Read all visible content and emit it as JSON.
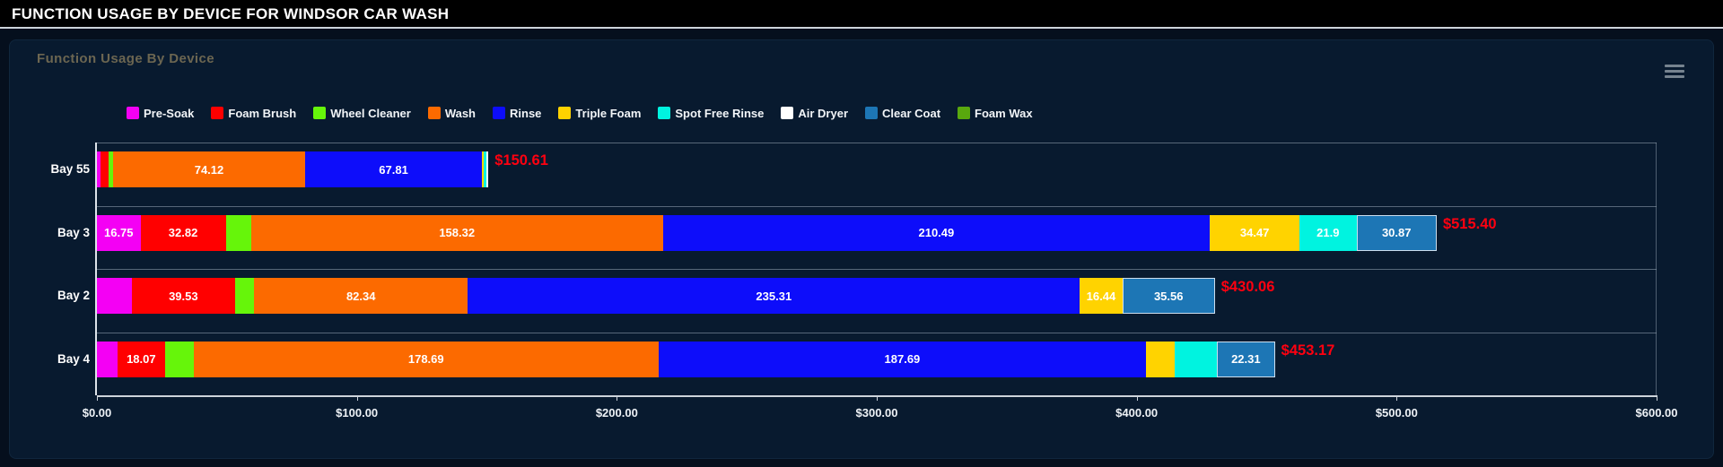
{
  "header": {
    "title": "FUNCTION USAGE BY DEVICE FOR WINDSOR CAR WASH"
  },
  "card": {
    "title": "Function Usage By Device",
    "menu_icon": "hamburger-icon"
  },
  "chart_data": {
    "type": "bar",
    "orientation": "horizontal",
    "stacked": true,
    "title": "Function Usage By Device",
    "xlabel": "",
    "ylabel": "",
    "xlim": [
      0,
      600
    ],
    "grid": "category-band-separators",
    "legend_position": "top",
    "x_ticks": [
      "$0.00",
      "$100.00",
      "$200.00",
      "$300.00",
      "$400.00",
      "$500.00",
      "$600.00"
    ],
    "legend": [
      {
        "name": "Pre-Soak",
        "color": "#f400f4"
      },
      {
        "name": "Foam Brush",
        "color": "#ff0000"
      },
      {
        "name": "Wheel Cleaner",
        "color": "#66f50a"
      },
      {
        "name": "Wash",
        "color": "#fc6a00"
      },
      {
        "name": "Rinse",
        "color": "#0d0dfa"
      },
      {
        "name": "Triple Foam",
        "color": "#ffd300"
      },
      {
        "name": "Spot Free Rinse",
        "color": "#00f3e0"
      },
      {
        "name": "Air Dryer",
        "color": "#ffffff"
      },
      {
        "name": "Clear Coat",
        "color": "#1d76b5"
      },
      {
        "name": "Foam Wax",
        "color": "#59a80e"
      }
    ],
    "rows": [
      {
        "label": "Bay 55",
        "total_value": 150.61,
        "total_label": "$150.61",
        "segments": [
          {
            "series": "Pre-Soak",
            "value": 1.5,
            "label": ""
          },
          {
            "series": "Foam Brush",
            "value": 3.1,
            "label": ""
          },
          {
            "series": "Wheel Cleaner",
            "value": 1.5,
            "label": ""
          },
          {
            "series": "Wash",
            "value": 74.12,
            "label": "74.12"
          },
          {
            "series": "Rinse",
            "value": 67.81,
            "label": "67.81"
          },
          {
            "series": "Triple Foam",
            "value": 0.9,
            "label": ""
          },
          {
            "series": "Spot Free Rinse",
            "value": 0.9,
            "label": ""
          },
          {
            "series": "Air Dryer",
            "value": 0.78,
            "label": ""
          }
        ]
      },
      {
        "label": "Bay 3",
        "total_value": 515.4,
        "total_label": "$515.40",
        "segments": [
          {
            "series": "Pre-Soak",
            "value": 16.75,
            "label": "16.75"
          },
          {
            "series": "Foam Brush",
            "value": 32.82,
            "label": "32.82"
          },
          {
            "series": "Wheel Cleaner",
            "value": 9.78,
            "label": ""
          },
          {
            "series": "Wash",
            "value": 158.32,
            "label": "158.32"
          },
          {
            "series": "Rinse",
            "value": 210.49,
            "label": "210.49"
          },
          {
            "series": "Triple Foam",
            "value": 34.47,
            "label": "34.47"
          },
          {
            "series": "Spot Free Rinse",
            "value": 21.9,
            "label": "21.9"
          },
          {
            "series": "Clear Coat",
            "value": 30.87,
            "label": "30.87"
          }
        ]
      },
      {
        "label": "Bay 2",
        "total_value": 430.06,
        "total_label": "$430.06",
        "segments": [
          {
            "series": "Pre-Soak",
            "value": 13.5,
            "label": ""
          },
          {
            "series": "Foam Brush",
            "value": 39.53,
            "label": "39.53"
          },
          {
            "series": "Wheel Cleaner",
            "value": 7.38,
            "label": ""
          },
          {
            "series": "Wash",
            "value": 82.34,
            "label": "82.34"
          },
          {
            "series": "Rinse",
            "value": 235.31,
            "label": "235.31"
          },
          {
            "series": "Triple Foam",
            "value": 16.44,
            "label": "16.44"
          },
          {
            "series": "Clear Coat",
            "value": 35.56,
            "label": "35.56"
          }
        ]
      },
      {
        "label": "Bay 4",
        "total_value": 453.17,
        "total_label": "$453.17",
        "segments": [
          {
            "series": "Pre-Soak",
            "value": 8.0,
            "label": ""
          },
          {
            "series": "Foam Brush",
            "value": 18.07,
            "label": "18.07"
          },
          {
            "series": "Wheel Cleaner",
            "value": 11.2,
            "label": ""
          },
          {
            "series": "Wash",
            "value": 178.69,
            "label": "178.69"
          },
          {
            "series": "Rinse",
            "value": 187.69,
            "label": "187.69"
          },
          {
            "series": "Triple Foam",
            "value": 10.8,
            "label": ""
          },
          {
            "series": "Spot Free Rinse",
            "value": 16.41,
            "label": ""
          },
          {
            "series": "Clear Coat",
            "value": 22.31,
            "label": "22.31"
          }
        ]
      }
    ]
  }
}
